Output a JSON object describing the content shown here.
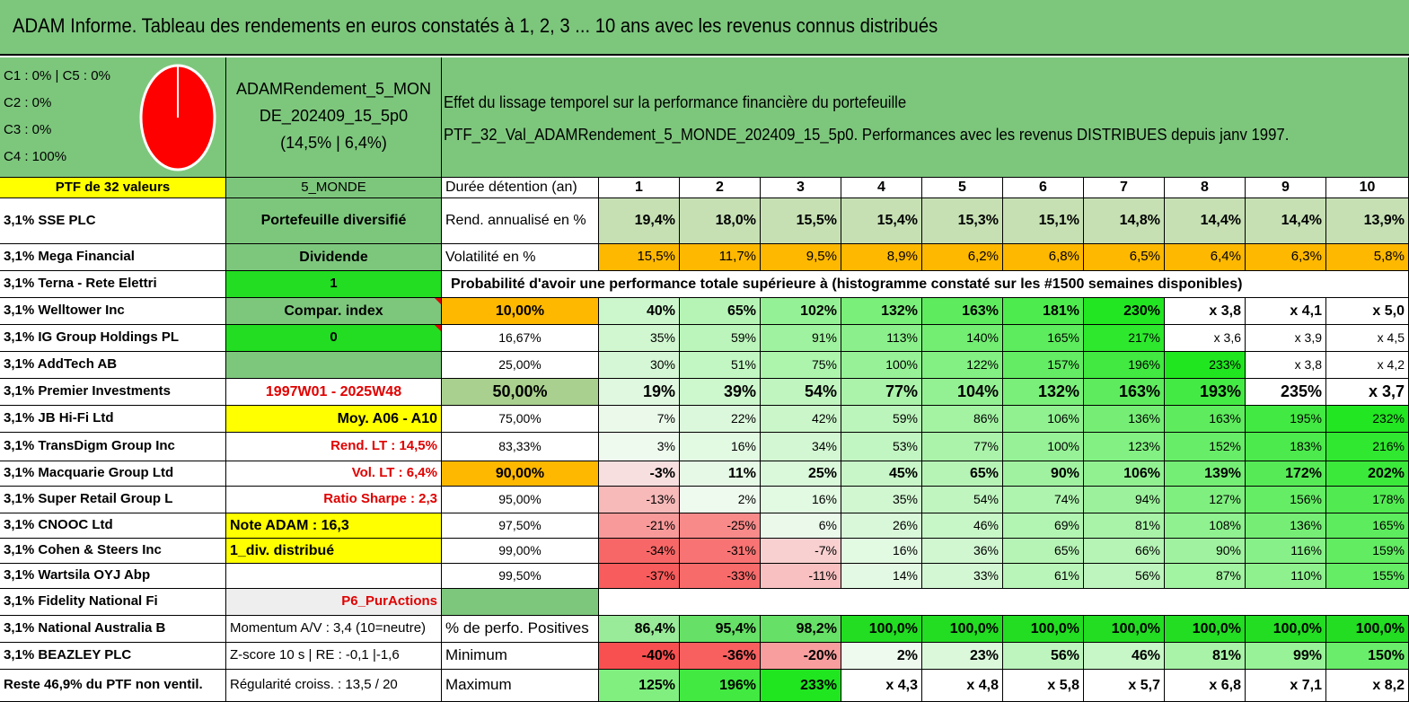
{
  "title": "ADAM Informe. Tableau des rendements en euros constatés à 1, 2, 3 ... 10 ans avec les revenus connus distribués",
  "composition": {
    "line1": "C1 : 0% | C5 : 0%",
    "line2": "C2 : 0%",
    "line3": "C3 : 0%",
    "line4": "C4 : 100%",
    "pie_shares": [
      0,
      0,
      0,
      100,
      0
    ]
  },
  "portfolio_name": {
    "line1": "ADAMRendement_5_MON",
    "line2": "DE_202409_15_5p0",
    "line3": "(14,5% | 6,4%)"
  },
  "effect": {
    "line1": "Effet du lissage temporel sur la performance financière du portefeuille",
    "line2": "PTF_32_Val_ADAMRendement_5_MONDE_202409_15_5p0. Performances avec les revenus DISTRIBUES depuis janv 1997."
  },
  "ptf_header": "PTF de 32 valeurs",
  "ptf_universe": "5_MONDE",
  "holdings": [
    "3,1% SSE PLC",
    "3,1% Mega Financial",
    "3,1% Terna - Rete Elettri",
    "3,1% Welltower Inc",
    "3,1% IG Group Holdings PL",
    "3,1% AddTech AB",
    "3,1% Premier Investments",
    "3,1% JB Hi-Fi Ltd",
    "3,1% TransDigm Group Inc",
    "3,1% Macquarie Group Ltd",
    "3,1% Super Retail Group L",
    "3,1% CNOOC Ltd",
    "3,1% Cohen & Steers Inc",
    "3,1% Wartsila OYJ Abp",
    "3,1% Fidelity National Fi",
    "3,1% National Australia B",
    "3,1% BEAZLEY PLC",
    "Reste 46,9% du PTF non ventil."
  ],
  "info_column": {
    "diversified": "Portefeuille diversifié",
    "dividend": "Dividende",
    "one": "1",
    "compar": "Compar. index",
    "zero": "0",
    "blank": "",
    "period": "1997W01 - 2025W48",
    "moy": "Moy. A06 - A10",
    "rend_lt": "Rend. LT : 14,5%",
    "vol_lt": "Vol. LT : 6,4%",
    "sharpe": "Ratio Sharpe : 2,3",
    "note": "Note ADAM : 16,3",
    "div": "1_div. distribué",
    "blank2": "",
    "p6": "P6_PurActions",
    "momentum": "Momentum A/V : 3,4 (10=neutre)",
    "zscore": "Z-score 10 s | RE : -0,1 |-1,6",
    "regularite": "Régularité croiss. : 13,5 / 20"
  },
  "table": {
    "duration_label": "Durée détention (an)",
    "years": [
      "1",
      "2",
      "3",
      "4",
      "5",
      "6",
      "7",
      "8",
      "9",
      "10"
    ],
    "rend_label": "Rend. annualisé en %",
    "rend": [
      "19,4%",
      "18,0%",
      "15,5%",
      "15,4%",
      "15,3%",
      "15,1%",
      "14,8%",
      "14,4%",
      "14,4%",
      "13,9%"
    ],
    "vol_label": "Volatilité en %",
    "vol": [
      "15,5%",
      "11,7%",
      "9,5%",
      "8,9%",
      "6,2%",
      "6,8%",
      "6,5%",
      "6,4%",
      "6,3%",
      "5,8%"
    ],
    "hist_title": "Probabilité d'avoir une performance totale supérieure à (histogramme constaté sur les #1500 semaines disponibles)",
    "prob_rows": [
      {
        "p": "10,00%",
        "v": [
          "40%",
          "65%",
          "102%",
          "132%",
          "163%",
          "181%",
          "230%",
          "x 3,8",
          "x 4,1",
          "x 5,0"
        ]
      },
      {
        "p": "16,67%",
        "v": [
          "35%",
          "59%",
          "91%",
          "113%",
          "140%",
          "165%",
          "217%",
          "x 3,6",
          "x 3,9",
          "x 4,5"
        ]
      },
      {
        "p": "25,00%",
        "v": [
          "30%",
          "51%",
          "75%",
          "100%",
          "122%",
          "157%",
          "196%",
          "233%",
          "x 3,8",
          "x 4,2"
        ]
      },
      {
        "p": "50,00%",
        "v": [
          "19%",
          "39%",
          "54%",
          "77%",
          "104%",
          "132%",
          "163%",
          "193%",
          "235%",
          "x 3,7"
        ]
      },
      {
        "p": "75,00%",
        "v": [
          "7%",
          "22%",
          "42%",
          "59%",
          "86%",
          "106%",
          "136%",
          "163%",
          "195%",
          "232%"
        ]
      },
      {
        "p": "83,33%",
        "v": [
          "3%",
          "16%",
          "34%",
          "53%",
          "77%",
          "100%",
          "123%",
          "152%",
          "183%",
          "216%"
        ]
      },
      {
        "p": "90,00%",
        "v": [
          "-3%",
          "11%",
          "25%",
          "45%",
          "65%",
          "90%",
          "106%",
          "139%",
          "172%",
          "202%"
        ]
      },
      {
        "p": "95,00%",
        "v": [
          "-13%",
          "2%",
          "16%",
          "35%",
          "54%",
          "74%",
          "94%",
          "127%",
          "156%",
          "178%"
        ]
      },
      {
        "p": "97,50%",
        "v": [
          "-21%",
          "-25%",
          "6%",
          "26%",
          "46%",
          "69%",
          "81%",
          "108%",
          "136%",
          "165%"
        ]
      },
      {
        "p": "99,00%",
        "v": [
          "-34%",
          "-31%",
          "-7%",
          "16%",
          "36%",
          "65%",
          "66%",
          "90%",
          "116%",
          "159%"
        ]
      },
      {
        "p": "99,50%",
        "v": [
          "-37%",
          "-33%",
          "-11%",
          "14%",
          "33%",
          "61%",
          "56%",
          "87%",
          "110%",
          "155%"
        ]
      }
    ],
    "pos_label": "% de perfo. Positives",
    "pos": [
      "86,4%",
      "95,4%",
      "98,2%",
      "100,0%",
      "100,0%",
      "100,0%",
      "100,0%",
      "100,0%",
      "100,0%",
      "100,0%"
    ],
    "min_label": "Minimum",
    "min": [
      "-40%",
      "-36%",
      "-20%",
      "2%",
      "23%",
      "56%",
      "46%",
      "81%",
      "99%",
      "150%"
    ],
    "max_label": "Maximum",
    "max": [
      "125%",
      "196%",
      "233%",
      "x 4,3",
      "x 4,8",
      "x 5,8",
      "x 5,7",
      "x 6,8",
      "x 7,1",
      "x 8,2"
    ]
  },
  "colors": {
    "title_green": "#7dc77d",
    "header_green": "#7dc77d",
    "yellow": "#ffff00",
    "orange": "#ffb800",
    "bright_green": "#22dd22",
    "red_text": "#e00000",
    "pie_red": "#ff0000"
  }
}
